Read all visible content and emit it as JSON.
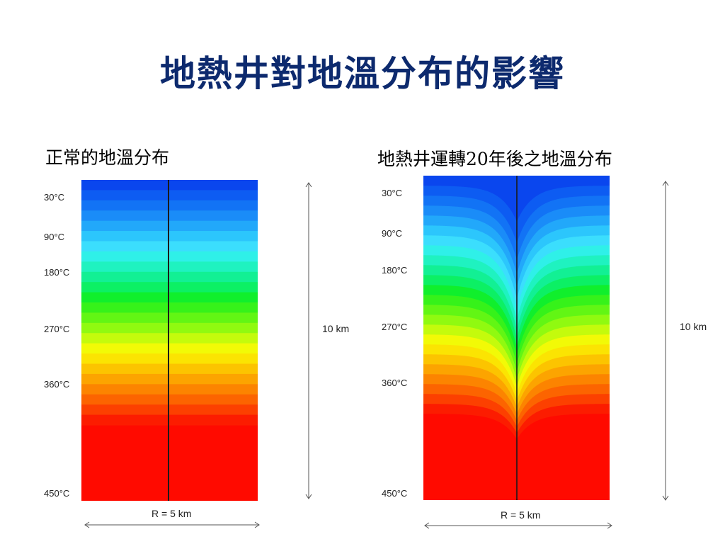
{
  "title": "地熱井對地溫分布的影響",
  "panels": {
    "left": {
      "caption": "正常的地溫分布",
      "temperature_labels": [
        "30°C",
        "90°C",
        "180°C",
        "270°C",
        "360°C",
        "450°C"
      ],
      "depth_label": "10 km",
      "radius_label": "R = 5 km"
    },
    "right": {
      "caption": "地熱井運轉20年後之地溫分布",
      "temperature_labels": [
        "30°C",
        "90°C",
        "180°C",
        "270°C",
        "360°C",
        "450°C"
      ],
      "depth_label": "10 km",
      "radius_label": "R = 5 km"
    }
  },
  "colors": {
    "title": "#0d2a6e",
    "bands": [
      "#0a46ee",
      "#0d5cf2",
      "#1273f5",
      "#1a8cf8",
      "#22a8fa",
      "#2cc6fc",
      "#3bdefd",
      "#2ff0e8",
      "#1ff2c0",
      "#12f094",
      "#0cf064",
      "#10ef2c",
      "#36f21a",
      "#62f614",
      "#90fa10",
      "#c4fb0c",
      "#f2fa06",
      "#fbe402",
      "#fcc400",
      "#fca400",
      "#fc8400",
      "#fc6400",
      "#fc4000",
      "#fc1c00"
    ],
    "bottom": "#ff0a00",
    "well": "#1a1a1a"
  }
}
